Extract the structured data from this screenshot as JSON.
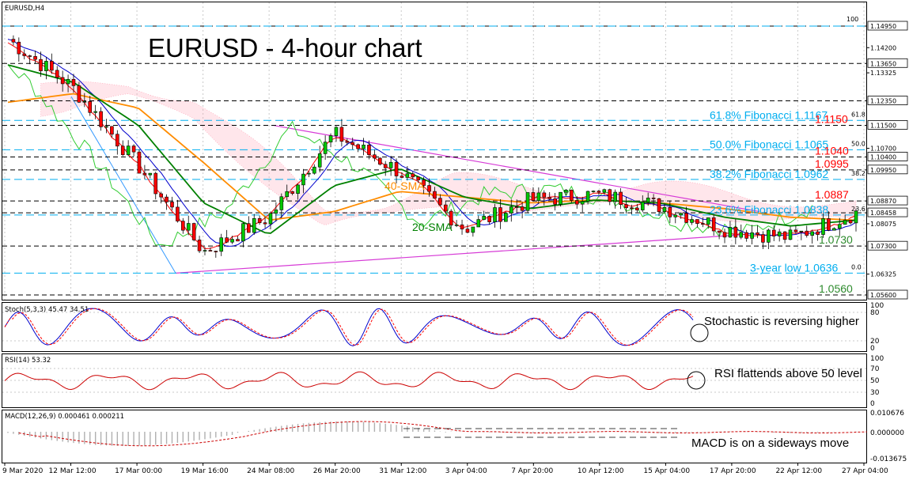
{
  "symbol_label": "EURUSD,H4",
  "title": "EURUSD - 4-hour chart",
  "colors": {
    "fib": "#00aeef",
    "level_red": "#ff0000",
    "level_green": "#2e8b2e",
    "sma20": "#008000",
    "sma40": "#ff8c00",
    "trend": "#d63ad6",
    "cloud": "#ff9ab0",
    "tenkan": "#ff0000",
    "kijun": "#0000cc",
    "chikou": "#33cc33",
    "stoch_main": "#0000cc",
    "stoch_signal": "#ff0000",
    "rsi": "#cc0000",
    "macd_hist": "#b0b0b0",
    "macd_signal": "#cc0000"
  },
  "price_axis": {
    "top_marker": "100",
    "tags": [
      {
        "value": 1.1495,
        "label": "1.14950",
        "boxed": true
      },
      {
        "value": 1.142,
        "label": "1.14200",
        "boxed": false
      },
      {
        "value": 1.1365,
        "label": "1.13650",
        "boxed": true
      },
      {
        "value": 1.13325,
        "label": "1.13325",
        "boxed": false
      },
      {
        "value": 1.1235,
        "label": "1.12350",
        "boxed": true
      },
      {
        "value": 1.115,
        "label": "1.11500",
        "boxed": true
      },
      {
        "value": 1.107,
        "label": "1.10700",
        "boxed": false
      },
      {
        "value": 1.104,
        "label": "1.10400",
        "boxed": true
      },
      {
        "value": 1.0995,
        "label": "1.09950",
        "boxed": true
      },
      {
        "value": 1.0887,
        "label": "1.08870",
        "boxed": true
      },
      {
        "value": 1.08458,
        "label": "1.08458",
        "boxed": true
      },
      {
        "value": 1.08075,
        "label": "1.08075",
        "boxed": false
      },
      {
        "value": 1.073,
        "label": "1.07300",
        "boxed": true
      },
      {
        "value": 1.06325,
        "label": "1.06325",
        "boxed": false
      },
      {
        "value": 1.056,
        "label": "1.05600",
        "boxed": true
      }
    ]
  },
  "fibonacci": [
    {
      "label": "61.8% Fibonacci 1.1167",
      "pct": "61.8",
      "value": 1.1167
    },
    {
      "label": "50.0% Fibonacci 1.1065",
      "pct": "50.0",
      "value": 1.1065
    },
    {
      "label": "38.2% Fibonacci 1.0962",
      "pct": "38.2",
      "value": 1.0962
    },
    {
      "label": "23.6% Fibonacci 1.0838",
      "pct": "23.6",
      "value": 1.0838
    },
    {
      "label": "3-year low 1.0636",
      "pct": "0.0",
      "value": 1.0636
    }
  ],
  "levels_red": [
    {
      "label": "1.1150",
      "value": 1.115
    },
    {
      "label": "1.1040",
      "value": 1.104
    },
    {
      "label": "1.0995",
      "value": 1.0995
    },
    {
      "label": "1.0887",
      "value": 1.0887
    }
  ],
  "levels_green": [
    {
      "label": "1.0730",
      "value": 1.073
    },
    {
      "label": "1.0560",
      "value": 1.056
    }
  ],
  "sma_labels": {
    "sma40": "40-SMA",
    "sma20": "20-SMA"
  },
  "x_axis_labels": [
    "9 Mar 2020",
    "12 Mar 12:00",
    "17 Mar 00:00",
    "19 Mar 16:00",
    "24 Mar 08:00",
    "26 Mar 20:00",
    "31 Mar 12:00",
    "3 Apr 04:00",
    "7 Apr 20:00",
    "10 Apr 12:00",
    "15 Apr 04:00",
    "17 Apr 20:00",
    "22 Apr 12:00",
    "27 Apr 04:00"
  ],
  "stoch": {
    "label": "Stoch(5,3,3) 45.47 34.51",
    "axis": [
      "100",
      "80",
      "20",
      "0"
    ],
    "note": "Stochastic is reversing higher"
  },
  "rsi": {
    "label": "RSI(14) 53.32",
    "axis": [
      "100",
      "70",
      "50",
      "30",
      "0"
    ],
    "note": "RSI flattends above 50 level"
  },
  "macd": {
    "label": "MACD(12,26,9) 0.000461 0.000211",
    "axis": [
      "0.010676",
      "0.000000",
      "-0.013675"
    ],
    "note": "MACD is on a sideways move"
  },
  "chart_data": {
    "type": "line",
    "title": "EURUSD - 4-hour chart",
    "xlabel": "",
    "ylabel": "",
    "ylim": [
      1.056,
      1.1495
    ],
    "grid": true,
    "x": [
      "9 Mar 2020",
      "12 Mar 12:00",
      "17 Mar 00:00",
      "19 Mar 16:00",
      "24 Mar 08:00",
      "26 Mar 20:00",
      "31 Mar 12:00",
      "3 Apr 04:00",
      "7 Apr 20:00",
      "10 Apr 12:00",
      "15 Apr 04:00",
      "17 Apr 20:00",
      "22 Apr 12:00",
      "27 Apr 04:00"
    ],
    "series": [
      {
        "name": "",
        "values": [
          1.145,
          1.128,
          1.101,
          1.071,
          1.083,
          1.112,
          1.099,
          1.079,
          1.089,
          1.091,
          1.087,
          1.079,
          1.076,
          1.0846
        ]
      },
      {
        "name": "20-SMA",
        "values": [
          1.136,
          1.13,
          1.115,
          1.088,
          1.077,
          1.094,
          1.1,
          1.09,
          1.086,
          1.089,
          1.088,
          1.083,
          1.08,
          1.082
        ]
      },
      {
        "name": "40-SMA",
        "values": [
          1.123,
          1.126,
          1.121,
          1.102,
          1.082,
          1.085,
          1.092,
          1.09,
          1.088,
          1.089,
          1.088,
          1.086,
          1.083,
          1.082
        ]
      }
    ]
  }
}
